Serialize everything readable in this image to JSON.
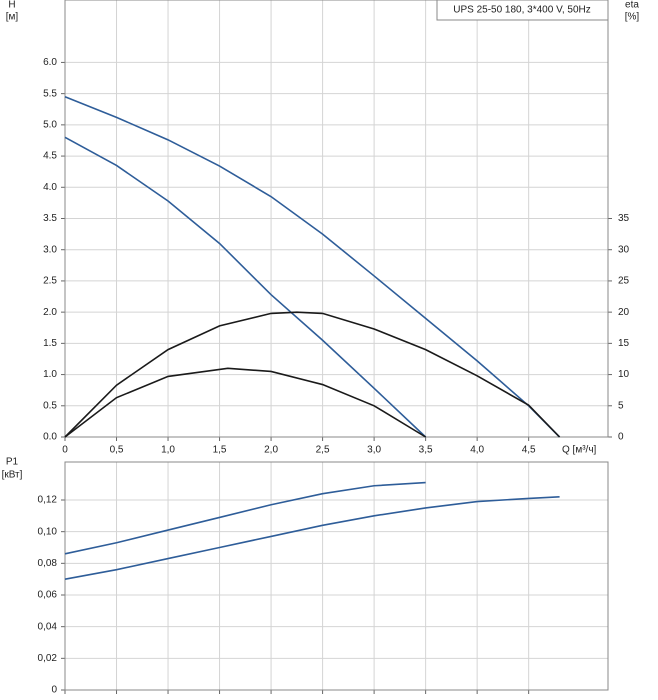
{
  "chart_data": [
    {
      "type": "line",
      "title": "UPS 25-50 180, 3*400 V, 50Hz",
      "y_label": "H",
      "y_unit": "[м]",
      "y2_label": "eta",
      "y2_unit": "[%]",
      "x_label": "Q [м³/ч]",
      "xlim": [
        0,
        5.27
      ],
      "ylim": [
        0,
        7
      ],
      "y2lim": [
        0,
        70
      ],
      "grid": true,
      "xticks": [
        0,
        {
          "value": 0.5,
          "label": "0,5"
        },
        {
          "value": 1,
          "label": "1,0"
        },
        {
          "value": 1.5,
          "label": "1,5"
        },
        {
          "value": 2,
          "label": "2,0"
        },
        {
          "value": 2.5,
          "label": "2,5"
        },
        {
          "value": 3,
          "label": "3,0"
        },
        {
          "value": 3.5,
          "label": "3,5"
        },
        {
          "value": 4,
          "label": "4,0"
        },
        {
          "value": 4.5,
          "label": "4,5"
        }
      ],
      "yticks": [
        {
          "value": 0,
          "label": "0.0"
        },
        0.5,
        {
          "value": 1,
          "label": "1.0"
        },
        1.5,
        {
          "value": 2,
          "label": "2.0"
        },
        2.5,
        {
          "value": 3,
          "label": "3.0"
        },
        3.5,
        {
          "value": 4,
          "label": "4.0"
        },
        4.5,
        {
          "value": 5,
          "label": "5.0"
        },
        5.5,
        {
          "value": 6,
          "label": "6.0"
        }
      ],
      "y2ticks": [
        0,
        5,
        10,
        15,
        20,
        25,
        30,
        35
      ],
      "series": [
        {
          "color": "#2e5d99",
          "x": [
            0,
            0.5,
            1,
            1.5,
            2,
            2.5,
            3,
            3.5,
            4,
            4.5,
            4.8
          ],
          "values": [
            5.45,
            5.12,
            4.76,
            4.34,
            3.85,
            3.25,
            2.58,
            1.9,
            1.22,
            0.5,
            0
          ]
        },
        {
          "color": "#2e5d99",
          "x": [
            0,
            0.5,
            1,
            1.5,
            2,
            2.5,
            3,
            3.5
          ],
          "values": [
            4.8,
            4.35,
            3.78,
            3.1,
            2.28,
            1.55,
            0.78,
            0
          ]
        },
        {
          "color": "#1a1a1a",
          "axis": "y2",
          "x": [
            0,
            0.5,
            1,
            1.5,
            2,
            2.25,
            2.5,
            3,
            3.5,
            4,
            4.5,
            4.8
          ],
          "values": [
            0,
            8.3,
            14,
            17.8,
            19.8,
            20,
            19.8,
            17.3,
            14,
            9.8,
            5.1,
            0
          ]
        },
        {
          "color": "#1a1a1a",
          "axis": "y2",
          "x": [
            0,
            0.5,
            1,
            1.58,
            2,
            2.5,
            3,
            3.5
          ],
          "values": [
            0,
            6.3,
            9.7,
            11,
            10.5,
            8.4,
            5,
            0
          ]
        }
      ]
    },
    {
      "type": "line",
      "y_label": "P1",
      "y_unit": "[кВт]",
      "xlim": [
        0,
        5.27
      ],
      "ylim": [
        0,
        0.144
      ],
      "grid": true,
      "yticks": [
        0,
        {
          "value": 0.02,
          "label": "0,02"
        },
        {
          "value": 0.04,
          "label": "0,04"
        },
        {
          "value": 0.06,
          "label": "0,06"
        },
        {
          "value": 0.08,
          "label": "0,08"
        },
        {
          "value": 0.1,
          "label": "0,10"
        },
        {
          "value": 0.12,
          "label": "0,12"
        }
      ],
      "series": [
        {
          "color": "#2e5d99",
          "x": [
            0,
            0.5,
            1,
            1.5,
            2,
            2.5,
            3,
            3.5
          ],
          "values": [
            0.086,
            0.093,
            0.101,
            0.109,
            0.117,
            0.124,
            0.129,
            0.131
          ]
        },
        {
          "color": "#2e5d99",
          "x": [
            0,
            0.5,
            1,
            1.5,
            2,
            2.5,
            3,
            3.5,
            4,
            4.5,
            4.8
          ],
          "values": [
            0.07,
            0.076,
            0.083,
            0.09,
            0.097,
            0.104,
            0.11,
            0.115,
            0.119,
            0.121,
            0.122
          ]
        }
      ]
    }
  ]
}
